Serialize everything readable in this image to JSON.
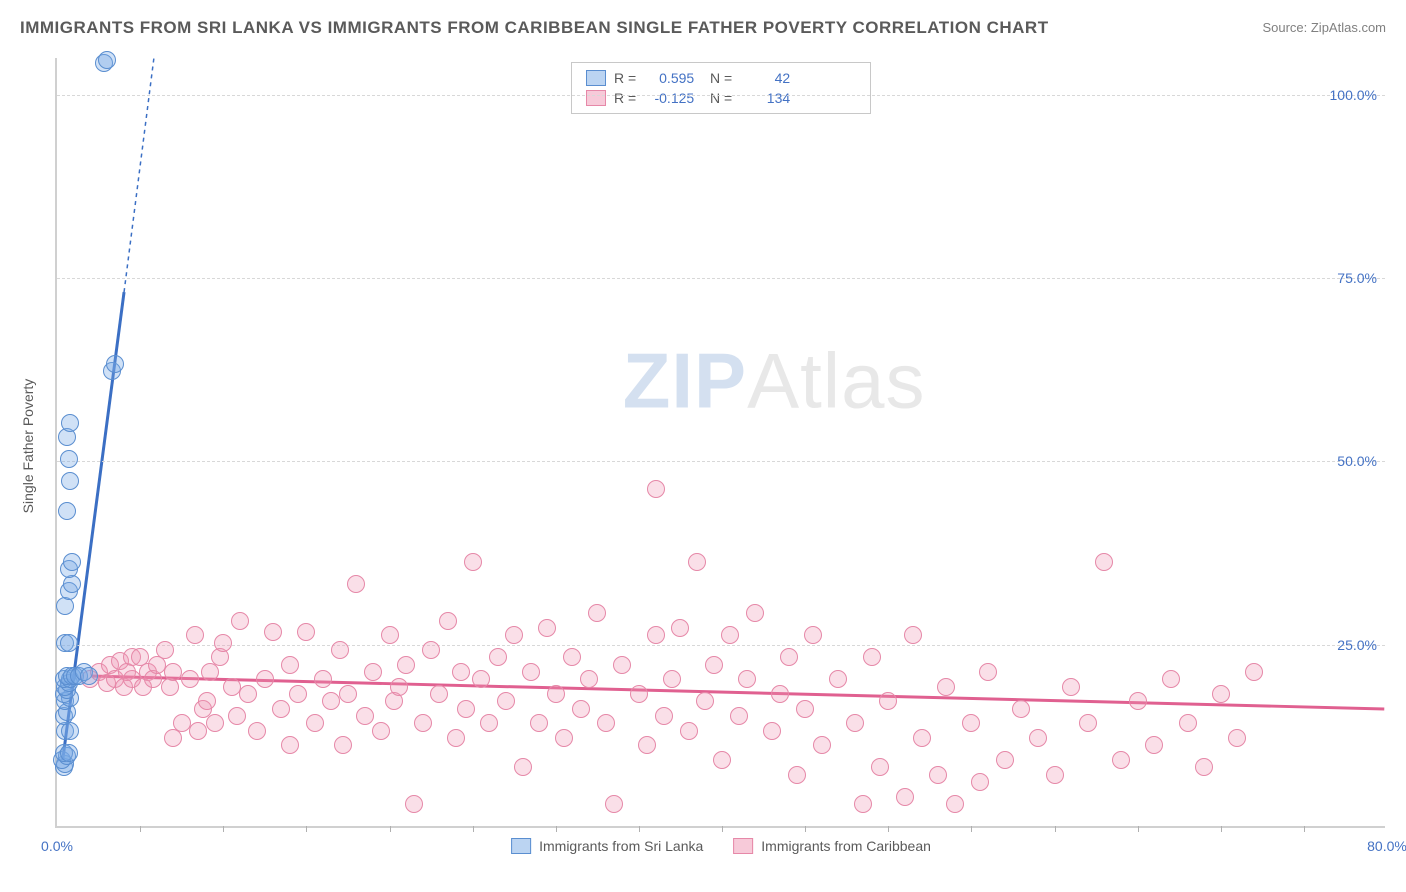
{
  "title": "IMMIGRANTS FROM SRI LANKA VS IMMIGRANTS FROM CARIBBEAN SINGLE FATHER POVERTY CORRELATION CHART",
  "source": "Source: ZipAtlas.com",
  "watermark": {
    "part1": "ZIP",
    "part2": "Atlas"
  },
  "y_axis": {
    "label": "Single Father Poverty"
  },
  "chart": {
    "type": "scatter",
    "xlim": [
      0,
      80
    ],
    "ylim": [
      0,
      105
    ],
    "y_ticks": [
      25,
      50,
      75,
      100
    ],
    "y_tick_labels": [
      "25.0%",
      "50.0%",
      "75.0%",
      "100.0%"
    ],
    "x_start_label": "0.0%",
    "x_end_label": "80.0%",
    "x_tick_positions": [
      5,
      10,
      15,
      20,
      25,
      30,
      35,
      40,
      45,
      50,
      55,
      60,
      65,
      70,
      75
    ],
    "grid_color": "#d8d8d8",
    "background_color": "#ffffff"
  },
  "series": [
    {
      "name": "Immigrants from Sri Lanka",
      "color_fill": "rgba(120,170,230,0.35)",
      "color_stroke": "#5a8ed0",
      "marker_radius": 9,
      "R": "0.595",
      "N": "42",
      "trend": {
        "x1": 0.3,
        "y1": 9,
        "x2_solid": 4.0,
        "y2_solid": 73,
        "x2_dash": 5.8,
        "y2_dash": 105,
        "stroke": "#3b6fc4",
        "width": 3
      },
      "points": [
        [
          0.4,
          8
        ],
        [
          0.5,
          8.5
        ],
        [
          0.3,
          9
        ],
        [
          0.6,
          9.5
        ],
        [
          0.4,
          10
        ],
        [
          0.7,
          10
        ],
        [
          0.5,
          13
        ],
        [
          0.8,
          13
        ],
        [
          0.4,
          15
        ],
        [
          0.6,
          15.5
        ],
        [
          0.5,
          17
        ],
        [
          0.8,
          17.5
        ],
        [
          0.4,
          18
        ],
        [
          0.6,
          18.5
        ],
        [
          0.5,
          19
        ],
        [
          0.7,
          19.5
        ],
        [
          0.4,
          20
        ],
        [
          0.8,
          20
        ],
        [
          0.6,
          20.5
        ],
        [
          0.9,
          20.5
        ],
        [
          1.1,
          20.5
        ],
        [
          1.3,
          20.5
        ],
        [
          1.6,
          21
        ],
        [
          1.9,
          20.5
        ],
        [
          0.5,
          25
        ],
        [
          0.7,
          25
        ],
        [
          0.5,
          30
        ],
        [
          0.7,
          32
        ],
        [
          0.9,
          33
        ],
        [
          0.7,
          35
        ],
        [
          0.9,
          36
        ],
        [
          0.6,
          43
        ],
        [
          0.8,
          47
        ],
        [
          0.7,
          50
        ],
        [
          0.6,
          53
        ],
        [
          0.8,
          55
        ],
        [
          3.3,
          62
        ],
        [
          3.5,
          63
        ],
        [
          2.8,
          104
        ],
        [
          3.0,
          104.5
        ]
      ]
    },
    {
      "name": "Immigrants from Caribbean",
      "color_fill": "rgba(240,150,180,0.3)",
      "color_stroke": "#e688a8",
      "marker_radius": 9,
      "R": "-0.125",
      "N": "134",
      "trend": {
        "x1": 2,
        "y1": 20.5,
        "x2": 80,
        "y2": 16,
        "stroke": "#e06090",
        "width": 3
      },
      "points": [
        [
          2,
          20
        ],
        [
          2.5,
          21
        ],
        [
          3,
          19.5
        ],
        [
          3.2,
          22
        ],
        [
          3.5,
          20
        ],
        [
          3.8,
          22.5
        ],
        [
          4,
          19
        ],
        [
          4.2,
          21
        ],
        [
          4.5,
          20
        ],
        [
          4.5,
          23
        ],
        [
          5,
          23
        ],
        [
          5.2,
          19
        ],
        [
          5.5,
          21
        ],
        [
          5.8,
          20
        ],
        [
          6,
          22
        ],
        [
          6.5,
          24
        ],
        [
          6.8,
          19
        ],
        [
          7,
          21
        ],
        [
          7,
          12
        ],
        [
          7.5,
          14
        ],
        [
          8,
          20
        ],
        [
          8.3,
          26
        ],
        [
          8.5,
          13
        ],
        [
          8.8,
          16
        ],
        [
          9,
          17
        ],
        [
          9.2,
          21
        ],
        [
          9.5,
          14
        ],
        [
          9.8,
          23
        ],
        [
          10,
          25
        ],
        [
          10.5,
          19
        ],
        [
          10.8,
          15
        ],
        [
          11,
          28
        ],
        [
          11.5,
          18
        ],
        [
          12,
          13
        ],
        [
          12.5,
          20
        ],
        [
          13,
          26.5
        ],
        [
          13.5,
          16
        ],
        [
          14,
          22
        ],
        [
          14,
          11
        ],
        [
          14.5,
          18
        ],
        [
          15,
          26.5
        ],
        [
          15.5,
          14
        ],
        [
          16,
          20
        ],
        [
          16.5,
          17
        ],
        [
          17,
          24
        ],
        [
          17.2,
          11
        ],
        [
          17.5,
          18
        ],
        [
          18,
          33
        ],
        [
          18.5,
          15
        ],
        [
          19,
          21
        ],
        [
          19.5,
          13
        ],
        [
          20,
          26
        ],
        [
          20.3,
          17
        ],
        [
          20.6,
          19
        ],
        [
          21,
          22
        ],
        [
          21.5,
          3
        ],
        [
          22,
          14
        ],
        [
          22.5,
          24
        ],
        [
          23,
          18
        ],
        [
          23.5,
          28
        ],
        [
          24,
          12
        ],
        [
          24.3,
          21
        ],
        [
          24.6,
          16
        ],
        [
          25,
          36
        ],
        [
          25.5,
          20
        ],
        [
          26,
          14
        ],
        [
          26.5,
          23
        ],
        [
          27,
          17
        ],
        [
          27.5,
          26
        ],
        [
          28,
          8
        ],
        [
          28.5,
          21
        ],
        [
          29,
          14
        ],
        [
          29.5,
          27
        ],
        [
          30,
          18
        ],
        [
          30.5,
          12
        ],
        [
          31,
          23
        ],
        [
          31.5,
          16
        ],
        [
          32,
          20
        ],
        [
          32.5,
          29
        ],
        [
          33,
          14
        ],
        [
          33.5,
          3
        ],
        [
          34,
          22
        ],
        [
          35,
          18
        ],
        [
          35.5,
          11
        ],
        [
          36,
          26
        ],
        [
          36,
          46
        ],
        [
          36.5,
          15
        ],
        [
          37,
          20
        ],
        [
          37.5,
          27
        ],
        [
          38,
          13
        ],
        [
          38.5,
          36
        ],
        [
          39,
          17
        ],
        [
          39.5,
          22
        ],
        [
          40,
          9
        ],
        [
          40.5,
          26
        ],
        [
          41,
          15
        ],
        [
          41.5,
          20
        ],
        [
          42,
          29
        ],
        [
          43,
          13
        ],
        [
          43.5,
          18
        ],
        [
          44,
          23
        ],
        [
          44.5,
          7
        ],
        [
          45,
          16
        ],
        [
          45.5,
          26
        ],
        [
          46,
          11
        ],
        [
          47,
          20
        ],
        [
          48,
          14
        ],
        [
          48.5,
          3
        ],
        [
          49,
          23
        ],
        [
          49.5,
          8
        ],
        [
          50,
          17
        ],
        [
          51,
          4
        ],
        [
          51.5,
          26
        ],
        [
          52,
          12
        ],
        [
          53,
          7
        ],
        [
          53.5,
          19
        ],
        [
          54,
          3
        ],
        [
          55,
          14
        ],
        [
          55.5,
          6
        ],
        [
          56,
          21
        ],
        [
          57,
          9
        ],
        [
          58,
          16
        ],
        [
          59,
          12
        ],
        [
          60,
          7
        ],
        [
          61,
          19
        ],
        [
          62,
          14
        ],
        [
          63,
          36
        ],
        [
          64,
          9
        ],
        [
          65,
          17
        ],
        [
          66,
          11
        ],
        [
          67,
          20
        ],
        [
          68,
          14
        ],
        [
          69,
          8
        ],
        [
          70,
          18
        ],
        [
          71,
          12
        ],
        [
          72,
          21
        ]
      ]
    }
  ],
  "bottom_legend": [
    {
      "swatch": "blue",
      "label": "Immigrants from Sri Lanka"
    },
    {
      "swatch": "pink",
      "label": "Immigrants from Caribbean"
    }
  ]
}
